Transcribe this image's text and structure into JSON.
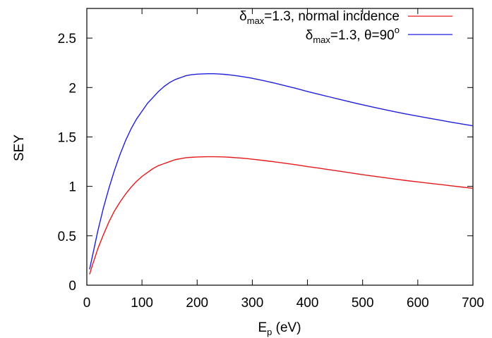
{
  "chart_data": {
    "type": "line",
    "xlabel": {
      "main": "E",
      "sub": "p",
      "rest": " (eV)"
    },
    "ylabel": "SEY",
    "xlim": [
      0,
      700
    ],
    "ylim": [
      0,
      2.8
    ],
    "xticks": [
      0,
      100,
      200,
      300,
      400,
      500,
      600,
      700
    ],
    "yticks": [
      0,
      0.5,
      1,
      1.5,
      2,
      2.5
    ],
    "xtick_labels": [
      "0",
      "100",
      "200",
      "300",
      "400",
      "500",
      "600",
      "700"
    ],
    "ytick_labels": [
      "0",
      "0.5",
      "1",
      "1.5",
      "2",
      "2.5"
    ],
    "grid": false,
    "legend_position": "top-right",
    "series": [
      {
        "name": "δmax=1.3, normal incidence",
        "legend": {
          "sym": "δ",
          "sub": "max",
          "rest": "=1.3, normal incidence"
        },
        "color": "#e41a1c",
        "x": [
          5,
          10,
          20,
          30,
          40,
          50,
          60,
          70,
          80,
          90,
          100,
          110,
          120,
          130,
          140,
          150,
          160,
          170,
          180,
          190,
          200,
          210,
          220,
          230,
          240,
          250,
          260,
          270,
          280,
          290,
          300,
          320,
          340,
          360,
          380,
          400,
          420,
          440,
          460,
          480,
          500,
          520,
          540,
          560,
          580,
          600,
          620,
          640,
          660,
          680,
          700
        ],
        "y": [
          0.11,
          0.2,
          0.37,
          0.51,
          0.64,
          0.75,
          0.84,
          0.92,
          0.99,
          1.05,
          1.1,
          1.14,
          1.18,
          1.21,
          1.23,
          1.25,
          1.27,
          1.28,
          1.29,
          1.294,
          1.297,
          1.299,
          1.3,
          1.3,
          1.299,
          1.297,
          1.294,
          1.29,
          1.286,
          1.281,
          1.275,
          1.262,
          1.248,
          1.233,
          1.218,
          1.2,
          1.185,
          1.168,
          1.152,
          1.135,
          1.118,
          1.103,
          1.088,
          1.073,
          1.058,
          1.045,
          1.032,
          1.019,
          1.006,
          0.993,
          0.98
        ]
      },
      {
        "name": "δmax=1.3, θ=90o",
        "legend": {
          "sym": "δ",
          "sub": "max",
          "rest": "=1.3, θ=90",
          "sup": "o"
        },
        "color": "#1f1fdc",
        "x": [
          5,
          10,
          20,
          30,
          40,
          50,
          60,
          70,
          80,
          90,
          100,
          110,
          120,
          130,
          140,
          150,
          160,
          170,
          180,
          190,
          200,
          210,
          220,
          230,
          240,
          250,
          260,
          270,
          280,
          290,
          300,
          320,
          340,
          360,
          380,
          400,
          420,
          440,
          460,
          480,
          500,
          520,
          540,
          560,
          580,
          600,
          620,
          640,
          660,
          680,
          700
        ],
        "y": [
          0.16,
          0.29,
          0.55,
          0.78,
          0.98,
          1.16,
          1.32,
          1.46,
          1.58,
          1.68,
          1.76,
          1.84,
          1.9,
          1.96,
          2.01,
          2.05,
          2.08,
          2.1,
          2.12,
          2.13,
          2.135,
          2.138,
          2.14,
          2.14,
          2.137,
          2.133,
          2.127,
          2.12,
          2.112,
          2.103,
          2.093,
          2.07,
          2.045,
          2.018,
          1.99,
          1.96,
          1.932,
          1.905,
          1.878,
          1.851,
          1.825,
          1.8,
          1.776,
          1.753,
          1.731,
          1.71,
          1.69,
          1.67,
          1.65,
          1.631,
          1.612
        ]
      }
    ]
  }
}
